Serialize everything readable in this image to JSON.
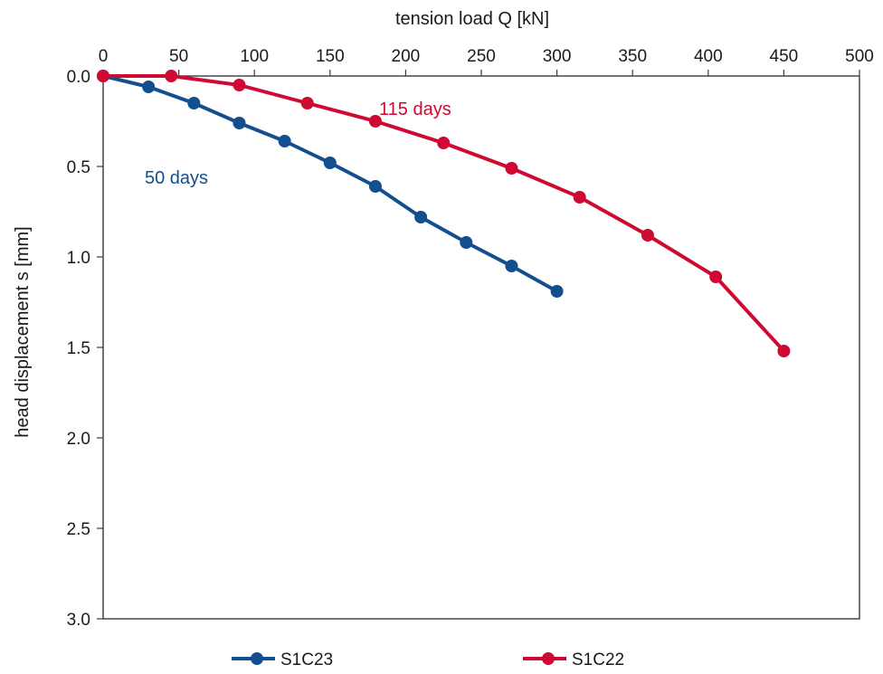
{
  "chart_data": {
    "type": "line",
    "x_axis": {
      "label": "tension load Q [kN]",
      "position": "top",
      "range": [
        0,
        500
      ],
      "ticks": [
        0,
        50,
        100,
        150,
        200,
        250,
        300,
        350,
        400,
        450,
        500
      ],
      "tick_labels": [
        "0",
        "50",
        "100",
        "150",
        "200",
        "250",
        "300",
        "350",
        "400",
        "450",
        "500"
      ]
    },
    "y_axis": {
      "label": "head displacement s [mm]",
      "inverted": true,
      "range": [
        0,
        3.0
      ],
      "ticks": [
        0,
        0.5,
        1.0,
        1.5,
        2.0,
        2.5,
        3.0
      ],
      "tick_labels": [
        "0.0",
        "0.5",
        "1.0",
        "1.5",
        "2.0",
        "2.5",
        "3.0"
      ]
    },
    "grid": false,
    "legend_position": "bottom",
    "series": [
      {
        "name": "S1C23",
        "color": "#134f8f",
        "marker": "circle",
        "annotation": "50 days",
        "x": [
          0,
          30,
          60,
          90,
          120,
          150,
          180,
          210,
          240,
          270,
          300
        ],
        "y": [
          0,
          0.06,
          0.15,
          0.26,
          0.36,
          0.48,
          0.61,
          0.78,
          0.92,
          1.05,
          1.19
        ]
      },
      {
        "name": "S1C22",
        "color": "#cf0a32",
        "marker": "circle",
        "annotation": "115 days",
        "x": [
          0,
          45,
          90,
          135,
          180,
          225,
          270,
          315,
          360,
          405,
          450
        ],
        "y": [
          0,
          0,
          0.05,
          0.15,
          0.25,
          0.37,
          0.51,
          0.67,
          0.88,
          1.11,
          1.52
        ]
      }
    ]
  }
}
